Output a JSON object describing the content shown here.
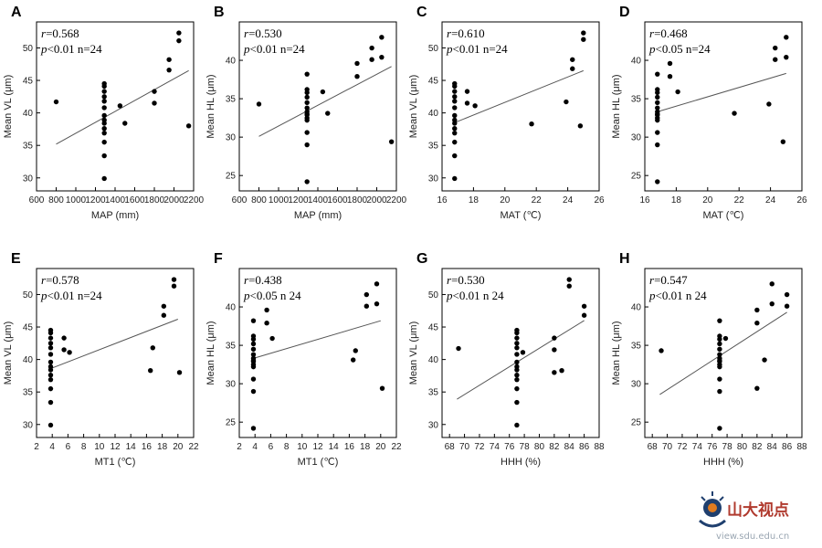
{
  "chart_data": [
    {
      "type": "scatter",
      "panel": "A",
      "xlabel": "MAP (mm)",
      "ylabel": "Mean VL (μm)",
      "xlim": [
        600,
        2200
      ],
      "ylim": [
        28,
        54
      ],
      "xticks": [
        600,
        800,
        1000,
        1200,
        1400,
        1600,
        1800,
        2000,
        2200
      ],
      "yticks": [
        30,
        35,
        40,
        45,
        50
      ],
      "r_label": "r",
      "r_value": "=0.568",
      "p_label": "p",
      "p_text": "<0.01 n=24",
      "fit": {
        "x": [
          800,
          2150
        ],
        "y": [
          35.2,
          46.5
        ]
      },
      "x": [
        800,
        1290,
        1290,
        1290,
        1290,
        1290,
        1290,
        1290,
        1290,
        1290,
        1290,
        1290,
        1290,
        1290,
        1290,
        1450,
        1500,
        1800,
        1800,
        1950,
        1950,
        2050,
        2050,
        2150
      ],
      "y": [
        41.7,
        29.9,
        33.4,
        35.5,
        36.9,
        37.6,
        38.4,
        39.6,
        40.8,
        41.8,
        42.5,
        43.3,
        44.1,
        44.5,
        38.9,
        41.1,
        38.4,
        43.3,
        41.5,
        46.6,
        48.2,
        51.1,
        52.3,
        38.0
      ]
    },
    {
      "type": "scatter",
      "panel": "B",
      "xlabel": "MAP (mm)",
      "ylabel": "Mean HL (μm)",
      "xlim": [
        600,
        2200
      ],
      "ylim": [
        23,
        45
      ],
      "xticks": [
        600,
        800,
        1000,
        1200,
        1400,
        1600,
        1800,
        2000,
        2200
      ],
      "yticks": [
        25,
        30,
        35,
        40
      ],
      "r_label": "r",
      "r_value": "=0.530",
      "p_label": "p",
      "p_text": "<0.01 n=24",
      "fit": {
        "x": [
          800,
          2150
        ],
        "y": [
          30.1,
          39.2
        ]
      },
      "x": [
        800,
        1290,
        1290,
        1290,
        1290,
        1290,
        1290,
        1290,
        1290,
        1290,
        1290,
        1290,
        1290,
        1290,
        1290,
        1450,
        1500,
        1800,
        1800,
        1950,
        1950,
        2050,
        2050,
        2150
      ],
      "y": [
        34.3,
        24.2,
        29.0,
        30.6,
        32.2,
        32.5,
        32.9,
        33.3,
        33.8,
        34.5,
        35.2,
        35.8,
        36.2,
        38.2,
        33.0,
        35.9,
        33.1,
        37.9,
        39.6,
        41.6,
        40.1,
        40.4,
        43.0,
        29.4
      ]
    },
    {
      "type": "scatter",
      "panel": "C",
      "xlabel": "MAT (℃)",
      "ylabel": "Mean VL (μm)",
      "xlim": [
        16,
        26
      ],
      "ylim": [
        28,
        54
      ],
      "xticks": [
        16,
        18,
        20,
        22,
        24,
        26
      ],
      "yticks": [
        30,
        35,
        40,
        45,
        50
      ],
      "r_label": "r",
      "r_value": "=0.610",
      "p_label": "p",
      "p_text": "<0.01 n=24",
      "fit": {
        "x": [
          16.8,
          25
        ],
        "y": [
          38.5,
          46.5
        ]
      },
      "x": [
        16.8,
        16.8,
        16.8,
        16.8,
        16.8,
        16.8,
        16.8,
        16.8,
        16.8,
        16.8,
        16.8,
        16.8,
        16.8,
        16.8,
        17.6,
        17.6,
        18.1,
        21.7,
        23.9,
        24.3,
        24.3,
        24.8,
        25.0,
        25.0
      ],
      "y": [
        29.9,
        33.4,
        35.5,
        36.9,
        37.6,
        38.4,
        39.6,
        40.8,
        41.8,
        42.5,
        43.3,
        44.1,
        44.5,
        38.9,
        43.3,
        41.5,
        41.1,
        38.3,
        41.7,
        46.8,
        48.2,
        38.0,
        51.3,
        52.3
      ]
    },
    {
      "type": "scatter",
      "panel": "D",
      "xlabel": "MAT (℃)",
      "ylabel": "Mean HL (μm)",
      "xlim": [
        16,
        26
      ],
      "ylim": [
        23,
        45
      ],
      "xticks": [
        16,
        18,
        20,
        22,
        24,
        26
      ],
      "yticks": [
        25,
        30,
        35,
        40
      ],
      "r_label": "r",
      "r_value": "=0.468",
      "p_label": "p",
      "p_text": "<0.05 n=24",
      "fit": {
        "x": [
          16.8,
          25
        ],
        "y": [
          33.3,
          38.3
        ]
      },
      "x": [
        16.8,
        16.8,
        16.8,
        16.8,
        16.8,
        16.8,
        16.8,
        16.8,
        16.8,
        16.8,
        16.8,
        16.8,
        16.8,
        16.8,
        17.6,
        17.6,
        18.1,
        21.7,
        23.9,
        24.3,
        24.3,
        24.8,
        25.0,
        25.0
      ],
      "y": [
        24.2,
        29.0,
        30.6,
        32.2,
        32.5,
        32.9,
        33.3,
        33.8,
        34.5,
        35.2,
        35.8,
        36.2,
        38.2,
        33.0,
        37.9,
        39.6,
        35.9,
        33.1,
        34.3,
        41.6,
        40.1,
        29.4,
        40.4,
        43.0
      ]
    },
    {
      "type": "scatter",
      "panel": "E",
      "xlabel": "MT1 (℃)",
      "ylabel": "Mean VL (μm)",
      "xlim": [
        2,
        22
      ],
      "ylim": [
        28,
        54
      ],
      "xticks": [
        2,
        4,
        6,
        8,
        10,
        12,
        14,
        16,
        18,
        20,
        22
      ],
      "yticks": [
        30,
        35,
        40,
        45,
        50
      ],
      "r_label": "r",
      "r_value": "=0.578",
      "p_label": "p",
      "p_text": "<0.01 n=24",
      "fit": {
        "x": [
          3.8,
          20
        ],
        "y": [
          38.6,
          46.2
        ]
      },
      "x": [
        3.8,
        3.8,
        3.8,
        3.8,
        3.8,
        3.8,
        3.8,
        3.8,
        3.8,
        3.8,
        3.8,
        3.8,
        3.8,
        3.8,
        5.5,
        5.5,
        6.2,
        16.5,
        16.8,
        18.2,
        18.2,
        19.5,
        19.5,
        20.2
      ],
      "y": [
        29.9,
        33.4,
        35.5,
        36.9,
        37.6,
        38.4,
        39.6,
        40.8,
        41.8,
        42.5,
        43.3,
        44.1,
        44.5,
        38.9,
        43.3,
        41.5,
        41.1,
        38.3,
        41.8,
        48.2,
        46.8,
        51.3,
        52.3,
        38.0
      ]
    },
    {
      "type": "scatter",
      "panel": "F",
      "xlabel": "MT1 (℃)",
      "ylabel": "Mean HL (μm)",
      "xlim": [
        2,
        22
      ],
      "ylim": [
        23,
        45
      ],
      "xticks": [
        2,
        4,
        6,
        8,
        10,
        12,
        14,
        16,
        18,
        20,
        22
      ],
      "yticks": [
        25,
        30,
        35,
        40
      ],
      "r_label": "r",
      "r_value": "=0.438",
      "p_label": "p",
      "p_text": "<0.05 n  24",
      "fit": {
        "x": [
          3.8,
          20
        ],
        "y": [
          33.3,
          38.2
        ]
      },
      "x": [
        3.8,
        3.8,
        3.8,
        3.8,
        3.8,
        3.8,
        3.8,
        3.8,
        3.8,
        3.8,
        3.8,
        3.8,
        3.8,
        3.8,
        5.5,
        5.5,
        6.2,
        16.5,
        16.8,
        18.2,
        18.2,
        19.5,
        19.5,
        20.2
      ],
      "y": [
        24.2,
        29.0,
        30.6,
        32.2,
        32.5,
        32.9,
        33.3,
        33.8,
        34.5,
        35.2,
        35.8,
        36.2,
        38.2,
        33.0,
        37.9,
        39.6,
        35.9,
        33.1,
        34.3,
        41.6,
        40.1,
        40.4,
        43.0,
        29.4
      ]
    },
    {
      "type": "scatter",
      "panel": "G",
      "xlabel": "HHH (%)",
      "ylabel": "Mean VL (μm)",
      "xlim": [
        67,
        88
      ],
      "ylim": [
        28,
        54
      ],
      "xticks": [
        68,
        70,
        72,
        74,
        76,
        78,
        80,
        82,
        84,
        86,
        88
      ],
      "yticks": [
        30,
        35,
        40,
        45,
        50
      ],
      "r_label": "r",
      "r_value": "=0.530",
      "p_label": "p",
      "p_text": "<0.01 n  24",
      "fit": {
        "x": [
          69,
          86
        ],
        "y": [
          33.9,
          46.0
        ]
      },
      "x": [
        69.2,
        77,
        77,
        77,
        77,
        77,
        77,
        77,
        77,
        77,
        77,
        77,
        77,
        77,
        77,
        77.8,
        82,
        82,
        82,
        83,
        84,
        84,
        86,
        86
      ],
      "y": [
        41.7,
        29.9,
        33.4,
        35.5,
        36.9,
        37.6,
        38.4,
        39.6,
        40.8,
        41.8,
        42.5,
        43.3,
        44.1,
        44.5,
        38.9,
        41.1,
        43.3,
        41.5,
        38.0,
        38.3,
        51.3,
        52.3,
        46.8,
        48.2
      ]
    },
    {
      "type": "scatter",
      "panel": "H",
      "xlabel": "HHH (%)",
      "ylabel": "Mean HL (μm)",
      "xlim": [
        67,
        88
      ],
      "ylim": [
        23,
        45
      ],
      "xticks": [
        68,
        70,
        72,
        74,
        76,
        78,
        80,
        82,
        84,
        86,
        88
      ],
      "yticks": [
        25,
        30,
        35,
        40
      ],
      "r_label": "r",
      "r_value": "=0.547",
      "p_label": "p",
      "p_text": "<0.01 n  24",
      "fit": {
        "x": [
          69,
          86
        ],
        "y": [
          28.6,
          39.3
        ]
      },
      "x": [
        69.2,
        77,
        77,
        77,
        77,
        77,
        77,
        77,
        77,
        77,
        77,
        77,
        77,
        77,
        77,
        77.8,
        82,
        82,
        82,
        83,
        84,
        84,
        86,
        86
      ],
      "y": [
        34.3,
        24.2,
        29.0,
        30.6,
        32.2,
        32.5,
        32.9,
        33.3,
        33.8,
        34.5,
        35.2,
        35.8,
        36.2,
        38.2,
        33.0,
        35.9,
        39.6,
        37.9,
        29.4,
        33.1,
        40.4,
        43.0,
        41.6,
        40.1
      ]
    }
  ],
  "watermark": {
    "text_cn": "山大视点",
    "url": "view.sdu.edu.cn"
  }
}
